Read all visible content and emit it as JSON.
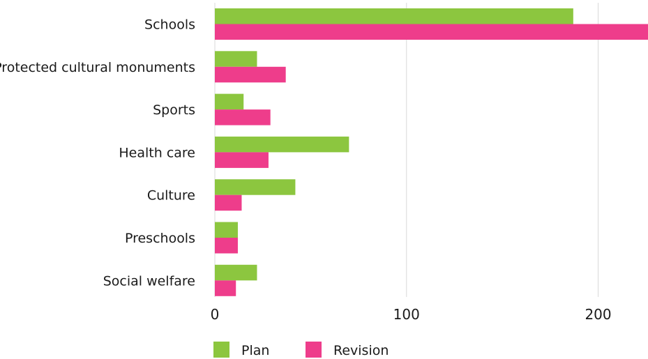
{
  "chart_data": {
    "type": "bar",
    "orientation": "horizontal",
    "categories": [
      "Schools",
      "Protected cultural monuments",
      "Sports",
      "Health care",
      "Culture",
      "Preschools",
      "Social welfare"
    ],
    "series": [
      {
        "name": "Plan",
        "color": "#8cc63f",
        "values": [
          187,
          22,
          15,
          70,
          42,
          12,
          22
        ]
      },
      {
        "name": "Revision",
        "color": "#ee3d8b",
        "values": [
          226,
          37,
          29,
          28,
          14,
          12,
          11
        ]
      }
    ],
    "xticks": [
      0,
      100,
      200
    ],
    "xlim": [
      0,
      226
    ],
    "grid": true,
    "legend_position": "bottom-left"
  }
}
